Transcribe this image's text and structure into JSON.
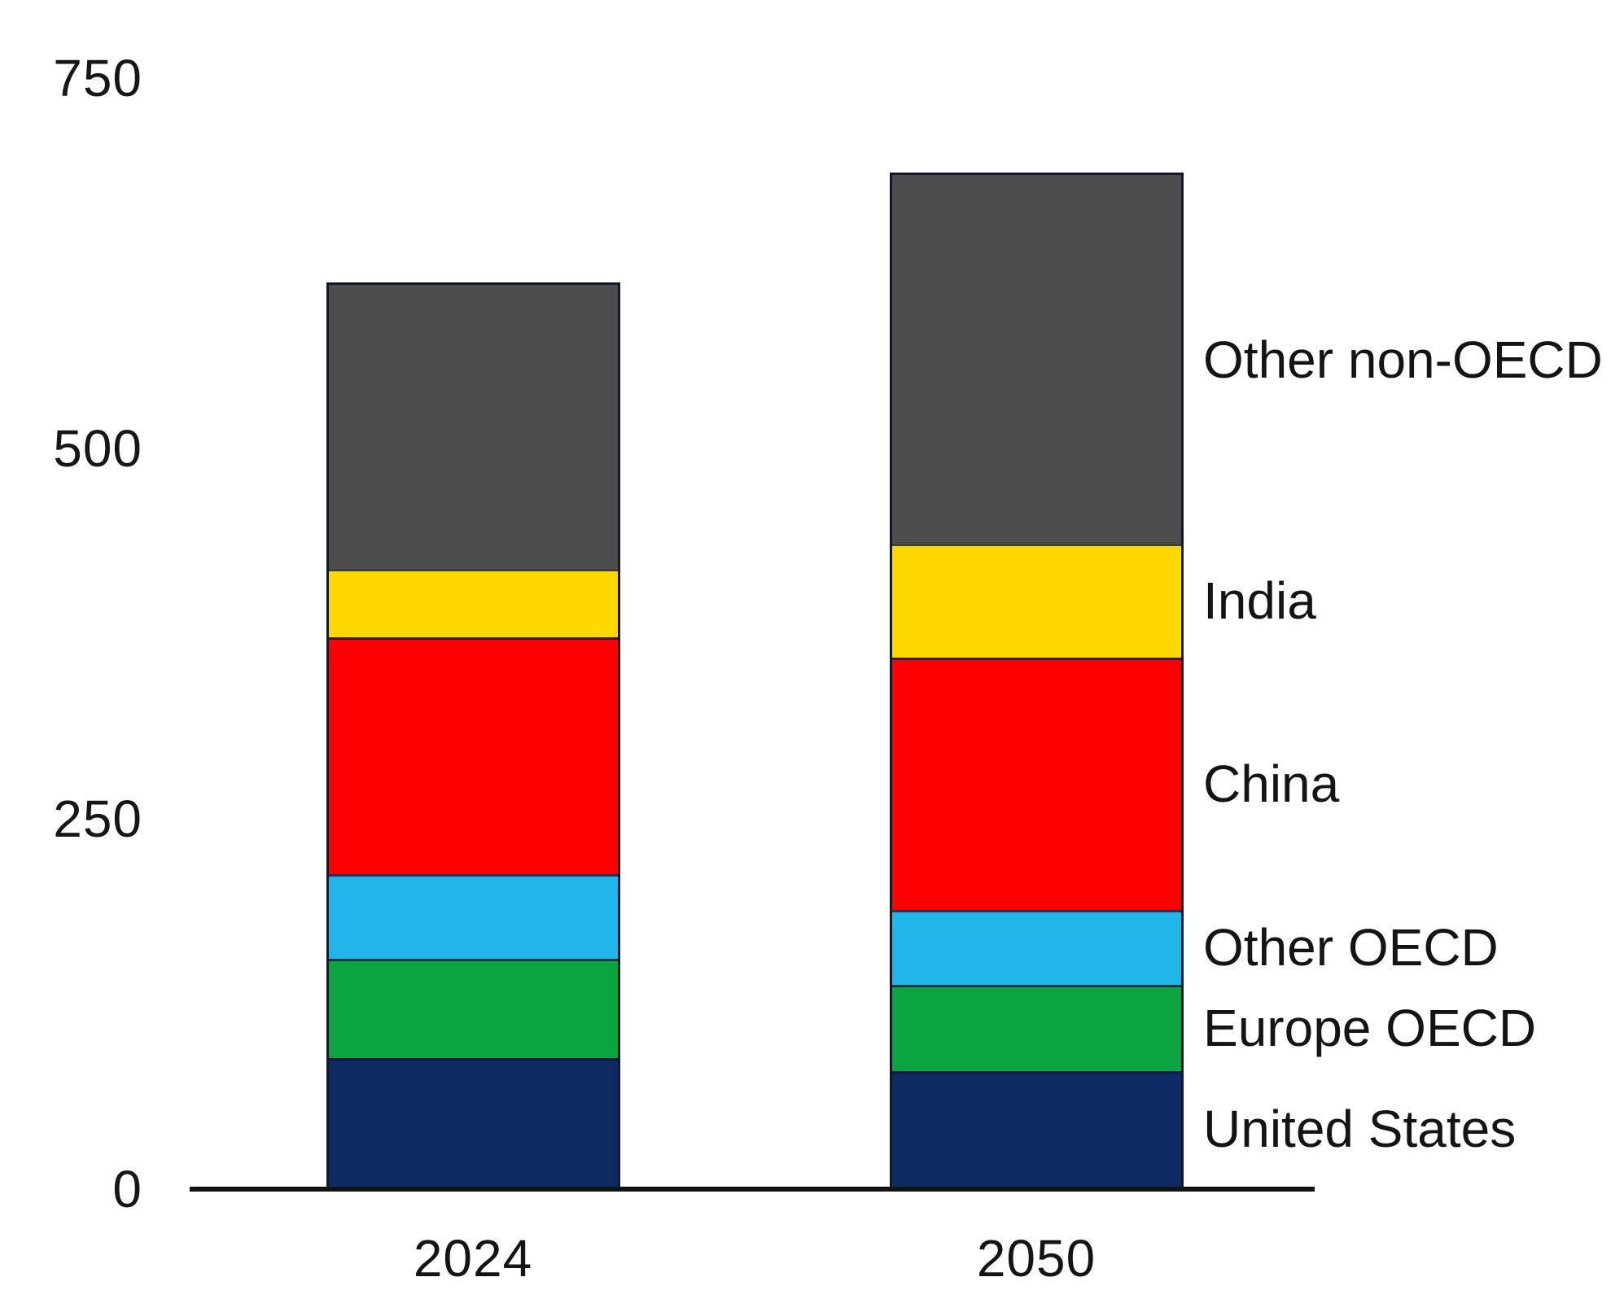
{
  "chart_data": {
    "type": "bar",
    "stacked": true,
    "title": "",
    "categories": [
      "2024",
      "2050"
    ],
    "series": [
      {
        "name": "United States",
        "color": "#0e2a63",
        "values": [
          87,
          78
        ]
      },
      {
        "name": "Europe OECD",
        "color": "#0aa540",
        "values": [
          67,
          58
        ]
      },
      {
        "name": "Other OECD",
        "color": "#20b6ea",
        "values": [
          57,
          51
        ]
      },
      {
        "name": "China",
        "color": "#fe0000",
        "values": [
          160,
          170
        ]
      },
      {
        "name": "India",
        "color": "#ffd800",
        "values": [
          46,
          77
        ]
      },
      {
        "name": "Other non-OECD",
        "color": "#4d4d4d",
        "values": [
          192,
          249
        ]
      }
    ],
    "totals": [
      609,
      683
    ],
    "y_axis": {
      "ticks": [
        0,
        250,
        500,
        750
      ],
      "min": 0,
      "max": 750
    },
    "grid": false,
    "legend_position": "right"
  }
}
